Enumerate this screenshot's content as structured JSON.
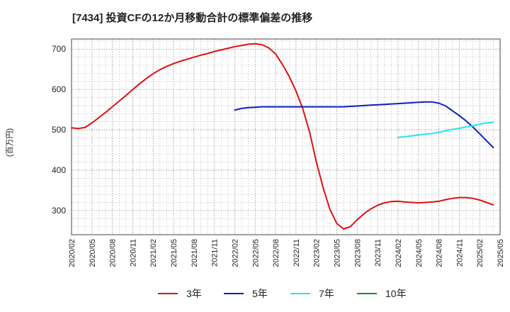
{
  "chart_data": {
    "type": "line",
    "title": "[7434]  投資CFの12か月移動合計の標準偏差の推移",
    "ylabel": "(百万円)",
    "xlabel": "",
    "ylim": [
      240,
      725
    ],
    "y_ticks": [
      "300",
      "400",
      "500",
      "600",
      "700"
    ],
    "x_tick_labels": [
      "2020/02",
      "2020/05",
      "2020/08",
      "2020/11",
      "2021/02",
      "2021/05",
      "2021/08",
      "2021/11",
      "2022/02",
      "2022/05",
      "2022/08",
      "2022/11",
      "2023/02",
      "2023/05",
      "2023/08",
      "2023/11",
      "2024/02",
      "2024/05",
      "2024/08",
      "2024/11",
      "2025/02",
      "2025/05"
    ],
    "grid": true,
    "legend_position": "bottom",
    "series": [
      {
        "name": "3年",
        "color": "#dd1111",
        "points": [
          [
            "2020/02",
            505
          ],
          [
            "2020/03",
            503
          ],
          [
            "2020/04",
            506
          ],
          [
            "2020/05",
            517
          ],
          [
            "2020/06",
            530
          ],
          [
            "2020/07",
            543
          ],
          [
            "2020/08",
            557
          ],
          [
            "2020/09",
            571
          ],
          [
            "2020/10",
            585
          ],
          [
            "2020/11",
            600
          ],
          [
            "2020/12",
            614
          ],
          [
            "2021/01",
            627
          ],
          [
            "2021/02",
            639
          ],
          [
            "2021/03",
            649
          ],
          [
            "2021/04",
            657
          ],
          [
            "2021/05",
            664
          ],
          [
            "2021/06",
            670
          ],
          [
            "2021/07",
            675
          ],
          [
            "2021/08",
            680
          ],
          [
            "2021/09",
            685
          ],
          [
            "2021/10",
            689
          ],
          [
            "2021/11",
            694
          ],
          [
            "2021/12",
            698
          ],
          [
            "2022/01",
            702
          ],
          [
            "2022/02",
            706
          ],
          [
            "2022/03",
            709
          ],
          [
            "2022/04",
            712
          ],
          [
            "2022/05",
            713
          ],
          [
            "2022/06",
            711
          ],
          [
            "2022/07",
            703
          ],
          [
            "2022/08",
            688
          ],
          [
            "2022/09",
            662
          ],
          [
            "2022/10",
            632
          ],
          [
            "2022/11",
            596
          ],
          [
            "2022/12",
            552
          ],
          [
            "2023/01",
            494
          ],
          [
            "2023/02",
            420
          ],
          [
            "2023/03",
            356
          ],
          [
            "2023/04",
            302
          ],
          [
            "2023/05",
            268
          ],
          [
            "2023/06",
            254
          ],
          [
            "2023/07",
            260
          ],
          [
            "2023/08",
            277
          ],
          [
            "2023/09",
            292
          ],
          [
            "2023/10",
            304
          ],
          [
            "2023/11",
            313
          ],
          [
            "2023/12",
            319
          ],
          [
            "2024/01",
            322
          ],
          [
            "2024/02",
            323
          ],
          [
            "2024/03",
            321
          ],
          [
            "2024/04",
            320
          ],
          [
            "2024/05",
            319
          ],
          [
            "2024/06",
            320
          ],
          [
            "2024/07",
            321
          ],
          [
            "2024/08",
            323
          ],
          [
            "2024/09",
            327
          ],
          [
            "2024/10",
            330
          ],
          [
            "2024/11",
            332
          ],
          [
            "2024/12",
            332
          ],
          [
            "2025/01",
            330
          ],
          [
            "2025/02",
            326
          ],
          [
            "2025/03",
            320
          ],
          [
            "2025/04",
            314
          ]
        ]
      },
      {
        "name": "5年",
        "color": "#0a1fbf",
        "points": [
          [
            "2022/02",
            549
          ],
          [
            "2022/03",
            553
          ],
          [
            "2022/04",
            555
          ],
          [
            "2022/05",
            556
          ],
          [
            "2022/06",
            557
          ],
          [
            "2022/07",
            557
          ],
          [
            "2022/08",
            557
          ],
          [
            "2022/09",
            557
          ],
          [
            "2022/10",
            557
          ],
          [
            "2022/11",
            557
          ],
          [
            "2022/12",
            557
          ],
          [
            "2023/01",
            557
          ],
          [
            "2023/02",
            557
          ],
          [
            "2023/03",
            557
          ],
          [
            "2023/04",
            557
          ],
          [
            "2023/05",
            557
          ],
          [
            "2023/06",
            557
          ],
          [
            "2023/07",
            558
          ],
          [
            "2023/08",
            559
          ],
          [
            "2023/09",
            560
          ],
          [
            "2023/10",
            561
          ],
          [
            "2023/11",
            562
          ],
          [
            "2023/12",
            563
          ],
          [
            "2024/01",
            564
          ],
          [
            "2024/02",
            565
          ],
          [
            "2024/03",
            566
          ],
          [
            "2024/04",
            567
          ],
          [
            "2024/05",
            568
          ],
          [
            "2024/06",
            569
          ],
          [
            "2024/07",
            569
          ],
          [
            "2024/08",
            566
          ],
          [
            "2024/09",
            559
          ],
          [
            "2024/10",
            547
          ],
          [
            "2024/11",
            535
          ],
          [
            "2024/12",
            522
          ],
          [
            "2025/01",
            507
          ],
          [
            "2025/02",
            490
          ],
          [
            "2025/03",
            473
          ],
          [
            "2025/04",
            456
          ]
        ]
      },
      {
        "name": "7年",
        "color": "#22e6ee",
        "points": [
          [
            "2024/02",
            481
          ],
          [
            "2024/03",
            483
          ],
          [
            "2024/04",
            485
          ],
          [
            "2024/05",
            487
          ],
          [
            "2024/06",
            489
          ],
          [
            "2024/07",
            491
          ],
          [
            "2024/08",
            494
          ],
          [
            "2024/09",
            497
          ],
          [
            "2024/10",
            501
          ],
          [
            "2024/11",
            504
          ],
          [
            "2024/12",
            507
          ],
          [
            "2025/01",
            510
          ],
          [
            "2025/02",
            514
          ],
          [
            "2025/03",
            517
          ],
          [
            "2025/04",
            519
          ]
        ]
      },
      {
        "name": "10年",
        "color": "#228b22",
        "points": []
      }
    ]
  }
}
